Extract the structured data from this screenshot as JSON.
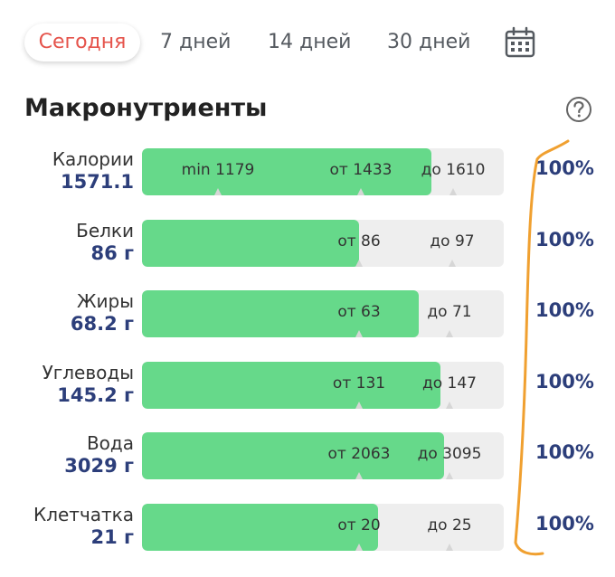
{
  "tabs": [
    {
      "label": "Сегодня",
      "active": true
    },
    {
      "label": "7 дней",
      "active": false
    },
    {
      "label": "14 дней",
      "active": false
    },
    {
      "label": "30 дней",
      "active": false
    }
  ],
  "calendar_icon": "calendar-icon",
  "section": {
    "title": "Макронутриенты",
    "help_icon": "question-circle-icon"
  },
  "scale_max": {
    "kcal": 1610,
    "protein": 97,
    "fat": 71,
    "carbs": 147,
    "water": 3095,
    "fiber": 25
  },
  "rows": [
    {
      "name": "Калории",
      "value": "1571.1",
      "fill": 0.8,
      "marks": [
        {
          "text": "min 1179",
          "pos": 0.21
        },
        {
          "text": "от 1433",
          "pos": 0.604
        },
        {
          "text": "до 1610",
          "pos": 0.86
        }
      ],
      "percent": "100%"
    },
    {
      "name": "Белки",
      "value": "86 г",
      "fill": 0.6,
      "marks": [
        {
          "text": "от 86",
          "pos": 0.6
        },
        {
          "text": "до 97",
          "pos": 0.857
        }
      ],
      "percent": "100%"
    },
    {
      "name": "Жиры",
      "value": "68.2 г",
      "fill": 0.765,
      "marks": [
        {
          "text": "от 63",
          "pos": 0.6
        },
        {
          "text": "до 71",
          "pos": 0.85
        }
      ],
      "percent": "100%"
    },
    {
      "name": "Углеводы",
      "value": "145.2 г",
      "fill": 0.825,
      "marks": [
        {
          "text": "от 131",
          "pos": 0.6
        },
        {
          "text": "до 147",
          "pos": 0.85
        }
      ],
      "percent": "100%"
    },
    {
      "name": "Вода",
      "value": "3029 г",
      "fill": 0.835,
      "marks": [
        {
          "text": "от 2063",
          "pos": 0.6
        },
        {
          "text": "до 3095",
          "pos": 0.85
        }
      ],
      "percent": "100%"
    },
    {
      "name": "Клетчатка",
      "value": "21 г",
      "fill": 0.653,
      "marks": [
        {
          "text": "от 20",
          "pos": 0.6
        },
        {
          "text": "до 25",
          "pos": 0.85
        }
      ],
      "percent": "100%"
    }
  ],
  "colors": {
    "accent": "#e5534b",
    "fill": "#66d98a",
    "track": "#eeeeee",
    "value": "#2c3e7a",
    "annotation": "#f0a030"
  }
}
